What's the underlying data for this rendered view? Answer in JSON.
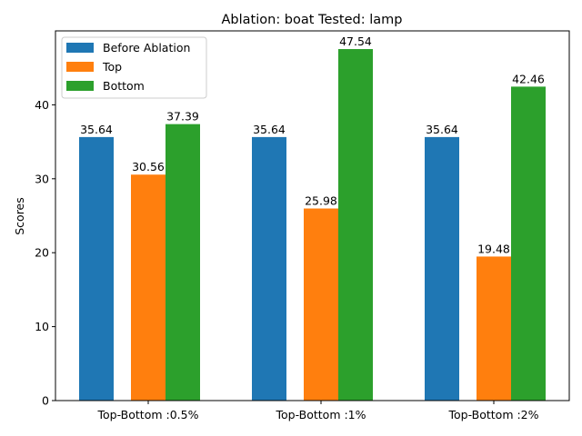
{
  "chart_data": {
    "type": "bar",
    "title": "Ablation: boat Tested: lamp",
    "xlabel": "",
    "ylabel": "Scores",
    "ylim": [
      0,
      50
    ],
    "yticks": [
      0,
      10,
      20,
      30,
      40
    ],
    "categories": [
      "Top-Bottom :0.5%",
      "Top-Bottom :1%",
      "Top-Bottom :2%"
    ],
    "series": [
      {
        "name": "Before Ablation",
        "color": "#1f77b4",
        "values": [
          35.64,
          35.64,
          35.64
        ],
        "labels": [
          "35.64",
          "35.64",
          "35.64"
        ]
      },
      {
        "name": "Top",
        "color": "#ff7f0e",
        "values": [
          30.56,
          25.98,
          19.48
        ],
        "labels": [
          "30.56",
          "25.98",
          "19.48"
        ]
      },
      {
        "name": "Bottom",
        "color": "#2ca02c",
        "values": [
          37.39,
          47.54,
          42.46
        ],
        "labels": [
          "37.39",
          "47.54",
          "42.46"
        ]
      }
    ],
    "legend": "top-left",
    "grid": false
  }
}
